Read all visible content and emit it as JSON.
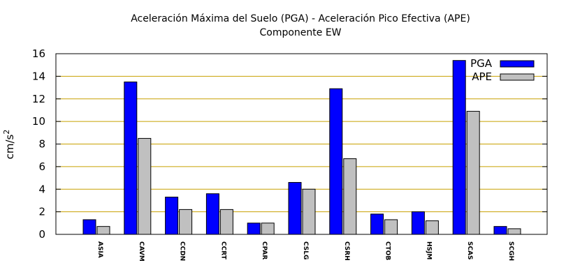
{
  "chart_data": {
    "type": "bar",
    "title": "Aceleración Máxima del Suelo (PGA) -  Aceleración Pico Efectiva (APE)",
    "subtitle": "Componente EW",
    "ylabel_base": "cm/s",
    "ylabel_exp": "2",
    "ylim": [
      0,
      16
    ],
    "yticks": [
      0,
      2,
      4,
      6,
      8,
      10,
      12,
      14,
      16
    ],
    "grid": true,
    "grid_color": "#c8a000",
    "legend_position": "top-right",
    "categories": [
      "ASIA",
      "CAVM",
      "CCDN",
      "CCRT",
      "CPAR",
      "CSLG",
      "CSRH",
      "CTOB",
      "HSJM",
      "SCAS",
      "SCGH"
    ],
    "series": [
      {
        "name": "PGA",
        "color": "#0000ff",
        "values": [
          1.3,
          13.5,
          3.3,
          3.6,
          1.0,
          4.6,
          12.9,
          1.8,
          2.0,
          15.4,
          0.7
        ]
      },
      {
        "name": "APE",
        "color": "#c0c0c0",
        "values": [
          0.7,
          8.5,
          2.2,
          2.2,
          1.0,
          4.0,
          6.7,
          1.3,
          1.2,
          10.9,
          0.5
        ]
      }
    ]
  }
}
